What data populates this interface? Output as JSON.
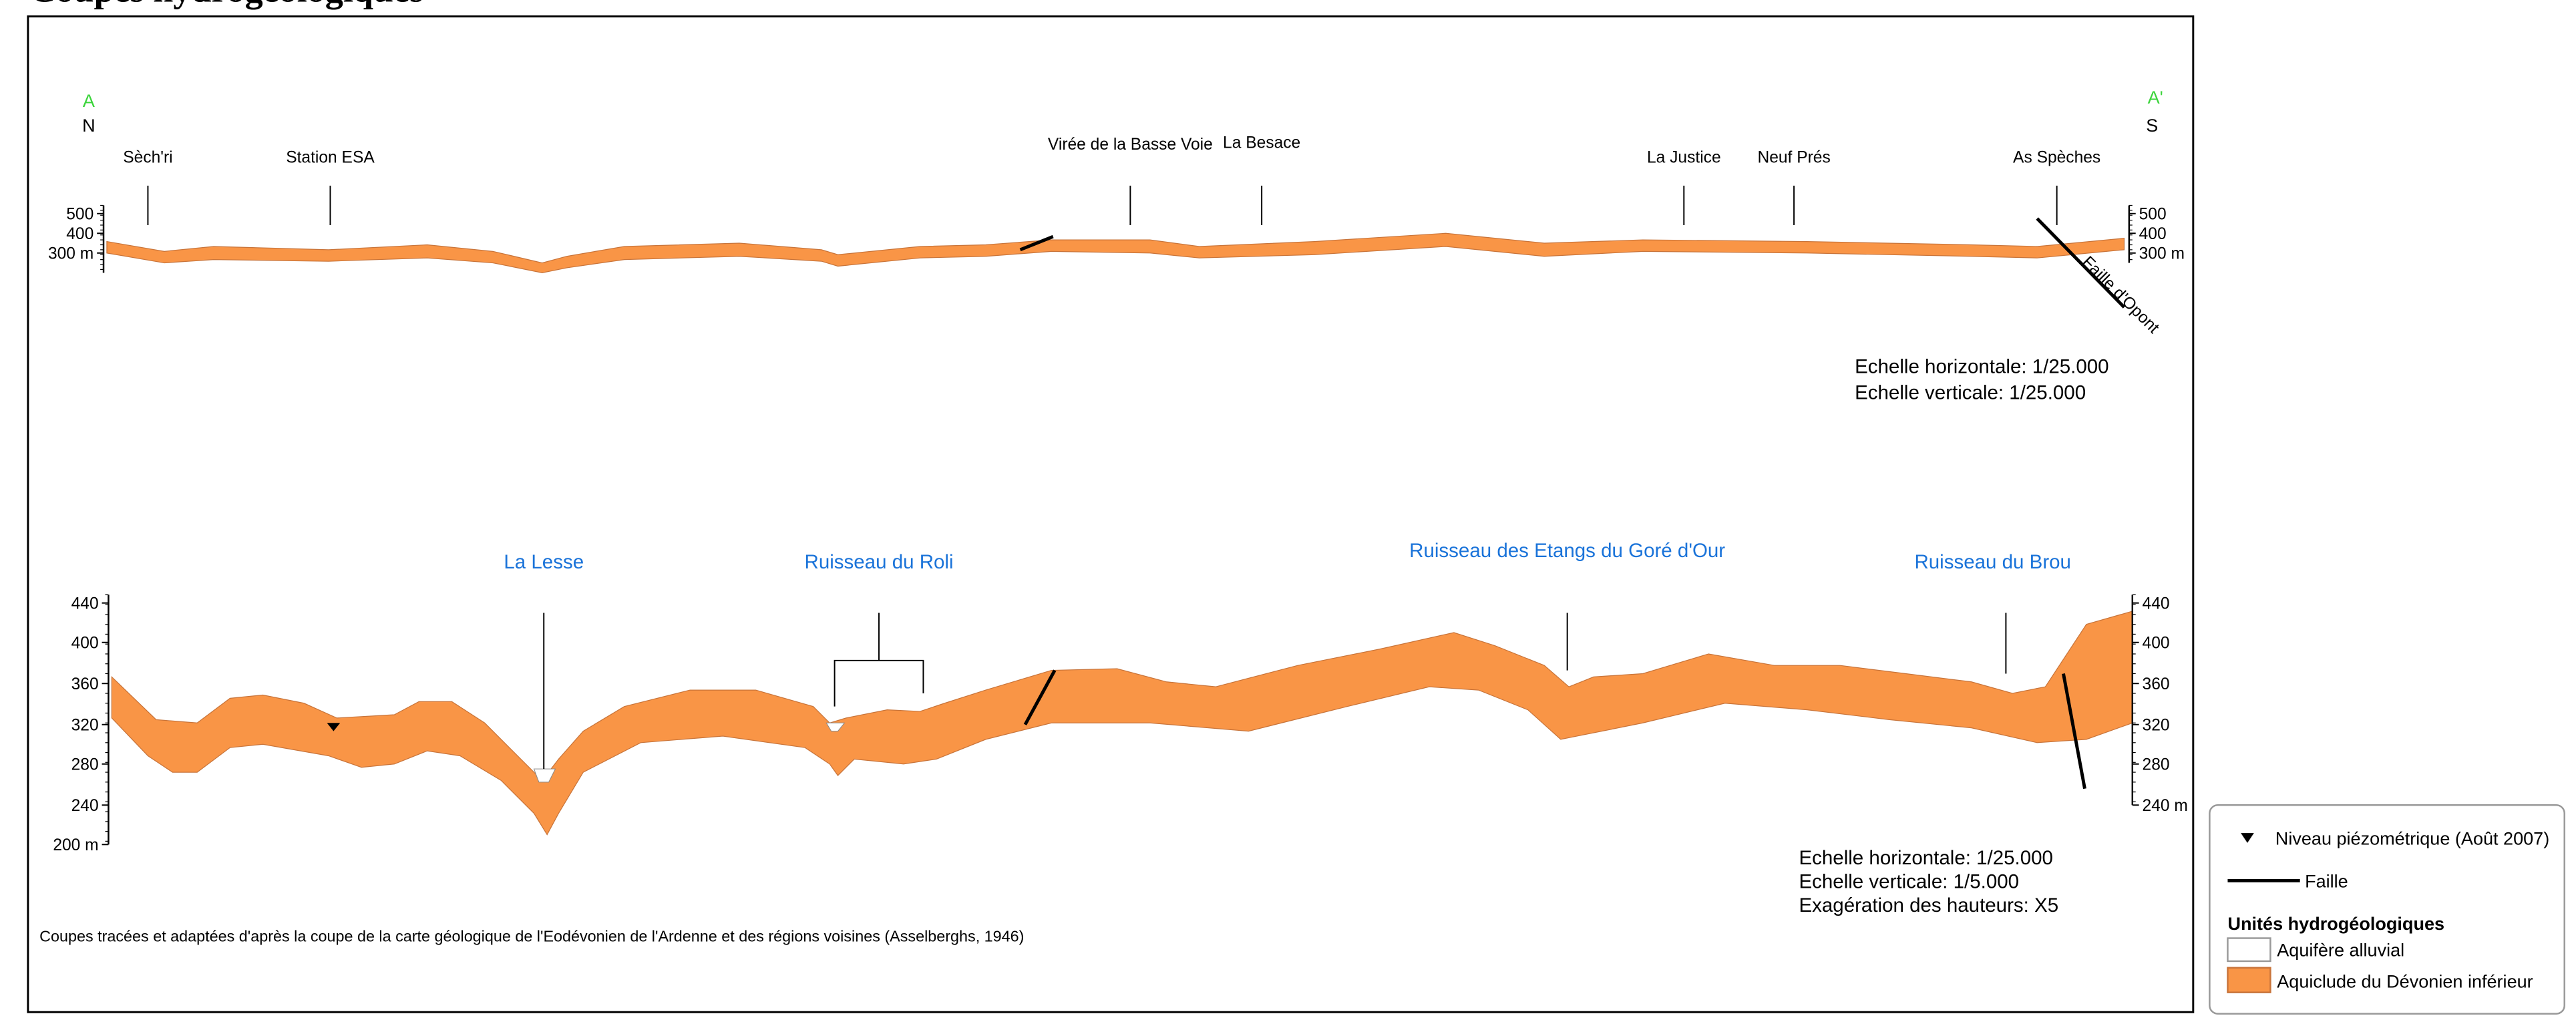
{
  "title": "Coupes hydrogéologiques",
  "section_1": {
    "start_label": "A",
    "start_direction": "N",
    "end_label": "A'",
    "end_direction": "S",
    "places": [
      "Sèch'ri",
      "Station ESA",
      "Virée de la Basse Voie",
      "La Besace",
      "La Justice",
      "Neuf Prés",
      "As Spèches"
    ],
    "axis_left": [
      "500",
      "400",
      "300 m"
    ],
    "axis_right": [
      "500",
      "400",
      "300 m"
    ],
    "fault_label": "Faille d'Opont",
    "scale": [
      "Echelle horizontale: 1/25.000",
      "Echelle verticale: 1/25.000"
    ]
  },
  "section_2": {
    "rivers": [
      "La Lesse",
      "Ruisseau du Roli",
      "Ruisseau des Etangs du Goré d'Our",
      "Ruisseau du Brou"
    ],
    "axis_left": [
      "440",
      "400",
      "360",
      "320",
      "280",
      "240",
      "200 m"
    ],
    "axis_right": [
      "440",
      "400",
      "360",
      "320",
      "280",
      "240 m"
    ],
    "scale": [
      "Echelle horizontale: 1/25.000",
      "Echelle verticale: 1/5.000",
      "Exagération des hauteurs: X5"
    ]
  },
  "source": "Coupes tracées et adaptées d'après la coupe de la carte géologique de l'Eodévonien de l'Ardenne et des régions voisines (Asselberghs, 1946)",
  "legend": {
    "piezometric": "Niveau piézométrique (Août 2007)",
    "fault": "Faille",
    "units_title": "Unités hydrogéologiques",
    "units": [
      "Aquifère alluvial",
      "Aquiclude du Dévonien inférieur"
    ]
  }
}
